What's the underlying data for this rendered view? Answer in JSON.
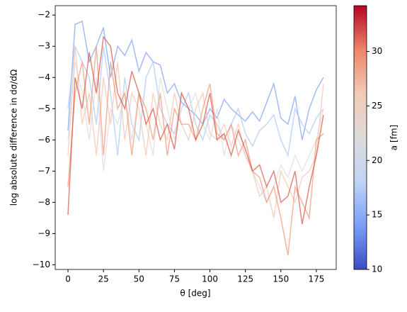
{
  "chart_data": {
    "type": "line",
    "xlabel": "θ [deg]",
    "ylabel": "log absolute difference in dσ/dΩ",
    "x": [
      0,
      5,
      10,
      15,
      20,
      25,
      30,
      35,
      40,
      45,
      50,
      55,
      60,
      65,
      70,
      75,
      80,
      85,
      90,
      95,
      100,
      105,
      110,
      115,
      120,
      125,
      130,
      135,
      140,
      145,
      150,
      155,
      160,
      165,
      170,
      175,
      180
    ],
    "xlim": [
      -9,
      189
    ],
    "xticks": [
      0,
      25,
      50,
      75,
      100,
      125,
      150,
      175
    ],
    "ylim": [
      -10.15,
      -1.7
    ],
    "yticks": [
      {
        "value": -10,
        "label": "−10"
      },
      {
        "value": -9,
        "label": "−9"
      },
      {
        "value": -8,
        "label": "−8"
      },
      {
        "value": -7,
        "label": "−7"
      },
      {
        "value": -6,
        "label": "−6"
      },
      {
        "value": -5,
        "label": "−5"
      },
      {
        "value": -4,
        "label": "−4"
      },
      {
        "value": -3,
        "label": "−3"
      },
      {
        "value": -2,
        "label": "−2"
      }
    ],
    "series": [
      {
        "color": "#7b9ff9",
        "values": [
          -5.7,
          -2.3,
          -2.2,
          -3.5,
          -3.0,
          -2.4,
          -4.0,
          -3.0,
          -3.3,
          -2.8,
          -3.8,
          -3.2,
          -3.5,
          -3.6,
          -4.5,
          -4.2,
          -4.8,
          -5.0,
          -5.2,
          -5.5,
          -5.0,
          -5.3,
          -4.7,
          -5.0,
          -5.2,
          -5.4,
          -5.1,
          -5.4,
          -4.8,
          -4.2,
          -5.3,
          -5.5,
          -4.6,
          -6.0,
          -5.0,
          -4.4,
          -4.0
        ]
      },
      {
        "color": "#aac7fd",
        "values": [
          -5.0,
          -3.0,
          -3.5,
          -4.0,
          -5.5,
          -3.0,
          -4.5,
          -6.5,
          -4.0,
          -5.5,
          -6.0,
          -4.0,
          -3.5,
          -5.0,
          -5.5,
          -5.8,
          -5.0,
          -4.5,
          -5.5,
          -6.0,
          -5.2,
          -5.5,
          -6.0,
          -5.5,
          -5.0,
          -5.8,
          -6.2,
          -5.7,
          -5.5,
          -5.2,
          -6.0,
          -6.5,
          -5.0,
          -5.5,
          -5.8,
          -5.3,
          -5.0
        ]
      },
      {
        "color": "#dddcdc",
        "values": [
          -6.0,
          -3.5,
          -4.5,
          -6.0,
          -4.0,
          -7.0,
          -5.0,
          -5.5,
          -4.5,
          -6.0,
          -4.5,
          -5.5,
          -6.5,
          -4.0,
          -5.0,
          -6.0,
          -4.5,
          -5.0,
          -4.5,
          -5.5,
          -6.0,
          -5.0,
          -6.5,
          -5.5,
          -6.0,
          -6.5,
          -7.0,
          -7.5,
          -8.0,
          -7.5,
          -6.8,
          -7.2,
          -6.5,
          -7.0,
          -6.5,
          -6.0,
          -5.0
        ]
      },
      {
        "color": "#f4c5ad",
        "values": [
          -6.5,
          -3.0,
          -5.5,
          -4.5,
          -6.5,
          -4.0,
          -5.5,
          -3.5,
          -6.0,
          -4.5,
          -5.0,
          -6.5,
          -4.5,
          -5.5,
          -6.0,
          -4.5,
          -5.5,
          -6.0,
          -5.0,
          -4.5,
          -5.8,
          -6.0,
          -5.5,
          -6.2,
          -5.5,
          -6.5,
          -7.0,
          -7.8,
          -7.5,
          -8.5,
          -7.0,
          -7.5,
          -8.0,
          -7.2,
          -7.0,
          -6.5,
          -4.2
        ]
      },
      {
        "color": "#f39475",
        "values": [
          -7.5,
          -4.5,
          -3.5,
          -5.5,
          -3.0,
          -6.5,
          -3.5,
          -5.0,
          -4.5,
          -6.5,
          -4.5,
          -5.0,
          -6.0,
          -4.5,
          -6.5,
          -5.0,
          -5.5,
          -5.5,
          -6.0,
          -5.0,
          -4.2,
          -5.8,
          -6.0,
          -5.5,
          -6.5,
          -6.0,
          -7.0,
          -7.2,
          -8.0,
          -7.5,
          -8.5,
          -9.7,
          -7.5,
          -8.0,
          -8.5,
          -6.0,
          -5.8
        ]
      },
      {
        "color": "#d65244",
        "values": [
          -8.4,
          -4.0,
          -5.0,
          -3.2,
          -4.5,
          -2.7,
          -3.0,
          -4.5,
          -5.0,
          -3.8,
          -4.5,
          -5.5,
          -5.0,
          -6.0,
          -5.5,
          -6.3,
          -4.5,
          -5.0,
          -6.0,
          -5.5,
          -4.5,
          -6.0,
          -5.8,
          -6.5,
          -5.7,
          -6.3,
          -7.0,
          -6.8,
          -7.5,
          -7.0,
          -8.0,
          -7.8,
          -7.0,
          -8.7,
          -7.5,
          -6.5,
          -5.2
        ]
      }
    ],
    "colorbar": {
      "label": "a [fm]",
      "lim": [
        10,
        34.2
      ],
      "ticks": [
        10,
        15,
        20,
        25,
        30
      ],
      "colors": [
        "#3b4cc0",
        "#7b9ff9",
        "#c0d4f5",
        "#dddcdc",
        "#f2cbb7",
        "#ee8468",
        "#b40426"
      ]
    }
  }
}
